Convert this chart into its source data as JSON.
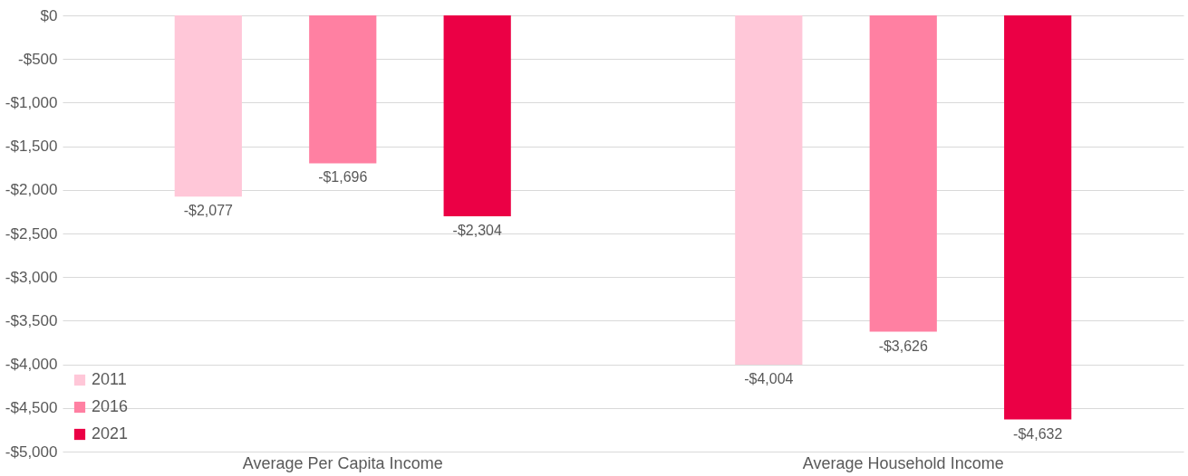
{
  "chart_data": {
    "type": "bar",
    "categories": [
      "Average Per Capita Income",
      "Average Household Income"
    ],
    "series": [
      {
        "name": "2011",
        "color": "#ffc7d8",
        "values": [
          -2077,
          -4004
        ],
        "value_labels": [
          "-$2,077",
          "-$4,004"
        ]
      },
      {
        "name": "2016",
        "color": "#ff80a2",
        "values": [
          -1696,
          -3626
        ],
        "value_labels": [
          "-$1,696",
          "-$3,626"
        ]
      },
      {
        "name": "2021",
        "color": "#eb0045",
        "values": [
          -2304,
          -4632
        ],
        "value_labels": [
          "-$2,304",
          "-$4,632"
        ]
      }
    ],
    "ylim": [
      -5000,
      0
    ],
    "yticks": [
      {
        "value": 0,
        "label": "$0"
      },
      {
        "value": -500,
        "label": "-$500"
      },
      {
        "value": -1000,
        "label": "-$1,000"
      },
      {
        "value": -1500,
        "label": "-$1,500"
      },
      {
        "value": -2000,
        "label": "-$2,000"
      },
      {
        "value": -2500,
        "label": "-$2,500"
      },
      {
        "value": -3000,
        "label": "-$3,000"
      },
      {
        "value": -3500,
        "label": "-$3,500"
      },
      {
        "value": -4000,
        "label": "-$4,000"
      },
      {
        "value": -4500,
        "label": "-$4,500"
      },
      {
        "value": -5000,
        "label": "-$5,000"
      }
    ],
    "grid": "y",
    "legend": "bottom left"
  }
}
